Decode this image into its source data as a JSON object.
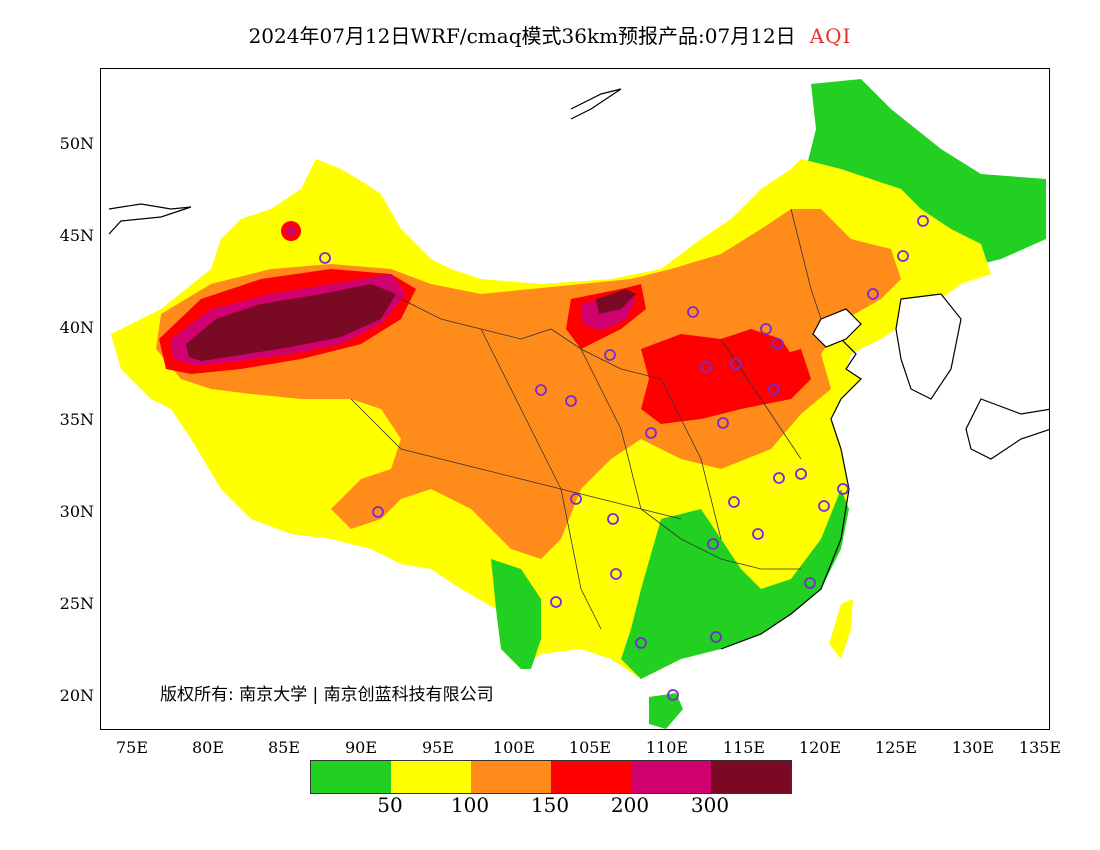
{
  "title": {
    "main": "2024年07月12日WRF/cmaq模式36km预报产品:07月12日",
    "variable": "AQI"
  },
  "map": {
    "lat_labels": [
      "50N",
      "45N",
      "40N",
      "35N",
      "30N",
      "25N",
      "20N"
    ],
    "lon_labels": [
      "75E",
      "80E",
      "85E",
      "90E",
      "95E",
      "100E",
      "105E",
      "110E",
      "115E",
      "120E",
      "125E",
      "130E",
      "135E"
    ],
    "copyright": "版权所有: 南京大学 | 南京创蓝科技有限公司"
  },
  "legend": {
    "colors": [
      "#22d022",
      "#ffff00",
      "#ff8c1a",
      "#ff0000",
      "#d0006e",
      "#7a0a24"
    ],
    "labels": [
      "50",
      "100",
      "150",
      "200",
      "300"
    ]
  }
}
